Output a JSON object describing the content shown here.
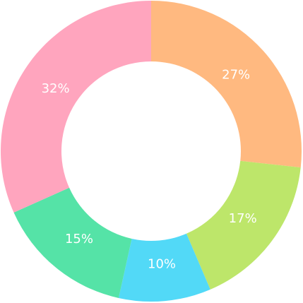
{
  "chart_data": {
    "type": "pie",
    "variant": "donut",
    "categories": [
      "",
      "",
      "",
      "",
      ""
    ],
    "values": [
      27,
      17,
      10,
      15,
      32
    ],
    "labels": [
      "27%",
      "17%",
      "10%",
      "15%",
      "32%"
    ],
    "colors": [
      "#FFB980",
      "#BDE66A",
      "#52D9F7",
      "#55E3A7",
      "#FFA5BE"
    ],
    "title": "",
    "legend": "none",
    "start": "top",
    "direction": "clockwise"
  }
}
